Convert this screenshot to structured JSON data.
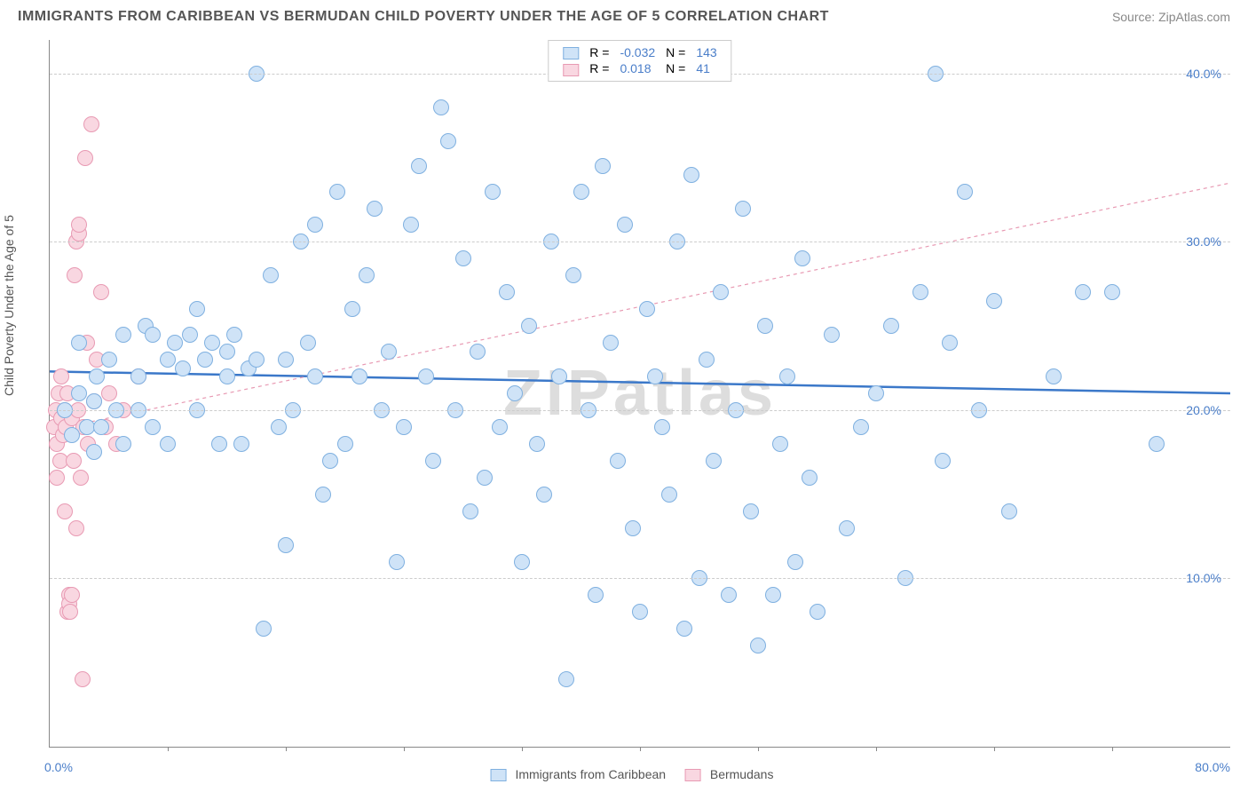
{
  "title": "IMMIGRANTS FROM CARIBBEAN VS BERMUDAN CHILD POVERTY UNDER THE AGE OF 5 CORRELATION CHART",
  "source_label": "Source: ",
  "source_value": "ZipAtlas.com",
  "ylabel": "Child Poverty Under the Age of 5",
  "watermark": "ZIPatlas",
  "chart": {
    "type": "scatter",
    "xlim": [
      0,
      80
    ],
    "ylim": [
      0,
      42
    ],
    "xticks": [
      0,
      80
    ],
    "xtick_labels": [
      "0.0%",
      "80.0%"
    ],
    "xtick_minor": [
      8,
      16,
      24,
      32,
      40,
      48,
      56,
      64,
      72
    ],
    "yticks": [
      10,
      20,
      30,
      40
    ],
    "ytick_labels": [
      "10.0%",
      "20.0%",
      "30.0%",
      "40.0%"
    ],
    "grid_color": "#cccccc",
    "background_color": "#ffffff",
    "series": [
      {
        "name": "Immigrants from Caribbean",
        "fill": "#cfe3f7",
        "stroke": "#7fb0e0",
        "marker_radius": 9,
        "R": "-0.032",
        "N": "143",
        "trend": {
          "x1": 0,
          "y1": 22.3,
          "x2": 80,
          "y2": 21.0,
          "stroke": "#3b78c9",
          "width": 2.5,
          "dash": "none"
        },
        "points": [
          [
            1,
            20
          ],
          [
            1.5,
            18.5
          ],
          [
            2,
            21
          ],
          [
            2,
            24
          ],
          [
            2.5,
            19
          ],
          [
            3,
            20.5
          ],
          [
            3,
            17.5
          ],
          [
            3.2,
            22
          ],
          [
            3.5,
            19
          ],
          [
            4,
            23
          ],
          [
            4.5,
            20
          ],
          [
            5,
            24.5
          ],
          [
            5,
            18
          ],
          [
            6,
            20
          ],
          [
            6,
            22
          ],
          [
            6.5,
            25
          ],
          [
            7,
            19
          ],
          [
            7,
            24.5
          ],
          [
            8,
            23
          ],
          [
            8,
            18
          ],
          [
            8.5,
            24
          ],
          [
            9,
            22.5
          ],
          [
            9.5,
            24.5
          ],
          [
            10,
            20
          ],
          [
            10,
            26
          ],
          [
            10.5,
            23
          ],
          [
            11,
            24
          ],
          [
            11.5,
            18
          ],
          [
            12,
            22
          ],
          [
            12,
            23.5
          ],
          [
            12.5,
            24.5
          ],
          [
            13,
            18
          ],
          [
            13.5,
            22.5
          ],
          [
            14,
            40
          ],
          [
            14,
            23
          ],
          [
            14.5,
            7
          ],
          [
            15,
            28
          ],
          [
            15.5,
            19
          ],
          [
            16,
            12
          ],
          [
            16,
            23
          ],
          [
            16.5,
            20
          ],
          [
            17,
            30
          ],
          [
            17.5,
            24
          ],
          [
            18,
            31
          ],
          [
            18,
            22
          ],
          [
            18.5,
            15
          ],
          [
            19,
            17
          ],
          [
            19.5,
            33
          ],
          [
            20,
            18
          ],
          [
            20.5,
            26
          ],
          [
            21,
            22
          ],
          [
            21.5,
            28
          ],
          [
            22,
            32
          ],
          [
            22.5,
            20
          ],
          [
            23,
            23.5
          ],
          [
            23.5,
            11
          ],
          [
            24,
            19
          ],
          [
            24.5,
            31
          ],
          [
            25,
            34.5
          ],
          [
            25.5,
            22
          ],
          [
            26,
            17
          ],
          [
            26.5,
            38
          ],
          [
            27,
            36
          ],
          [
            27.5,
            20
          ],
          [
            28,
            29
          ],
          [
            28.5,
            14
          ],
          [
            29,
            23.5
          ],
          [
            29.5,
            16
          ],
          [
            30,
            33
          ],
          [
            30.5,
            19
          ],
          [
            31,
            27
          ],
          [
            31.5,
            21
          ],
          [
            32,
            11
          ],
          [
            32.5,
            25
          ],
          [
            33,
            18
          ],
          [
            33.5,
            15
          ],
          [
            34,
            30
          ],
          [
            34.5,
            22
          ],
          [
            35,
            4
          ],
          [
            35.5,
            28
          ],
          [
            36,
            33
          ],
          [
            36.5,
            20
          ],
          [
            37,
            9
          ],
          [
            37.5,
            34.5
          ],
          [
            38,
            24
          ],
          [
            38.5,
            17
          ],
          [
            39,
            31
          ],
          [
            39.5,
            13
          ],
          [
            40,
            8
          ],
          [
            40.5,
            26
          ],
          [
            41,
            22
          ],
          [
            41.5,
            19
          ],
          [
            42,
            15
          ],
          [
            42.5,
            30
          ],
          [
            43,
            7
          ],
          [
            43.5,
            34
          ],
          [
            44,
            10
          ],
          [
            44.5,
            23
          ],
          [
            45,
            17
          ],
          [
            45.5,
            27
          ],
          [
            46,
            9
          ],
          [
            46.5,
            20
          ],
          [
            47,
            32
          ],
          [
            47.5,
            14
          ],
          [
            48,
            6
          ],
          [
            48.5,
            25
          ],
          [
            49,
            9
          ],
          [
            49.5,
            18
          ],
          [
            50,
            22
          ],
          [
            50.5,
            11
          ],
          [
            51,
            29
          ],
          [
            51.5,
            16
          ],
          [
            52,
            8
          ],
          [
            53,
            24.5
          ],
          [
            54,
            13
          ],
          [
            55,
            19
          ],
          [
            56,
            21
          ],
          [
            57,
            25
          ],
          [
            58,
            10
          ],
          [
            59,
            27
          ],
          [
            60,
            40
          ],
          [
            60.5,
            17
          ],
          [
            61,
            24
          ],
          [
            62,
            33
          ],
          [
            63,
            20
          ],
          [
            64,
            26.5
          ],
          [
            65,
            14
          ],
          [
            68,
            22
          ],
          [
            70,
            27
          ],
          [
            72,
            27
          ],
          [
            75,
            18
          ]
        ]
      },
      {
        "name": "Bermudans",
        "fill": "#f9d7e1",
        "stroke": "#e89ab3",
        "marker_radius": 9,
        "R": "0.018",
        "N": "41",
        "trend": {
          "x1": 0,
          "y1": 18.8,
          "x2": 80,
          "y2": 33.5,
          "stroke": "#e89ab3",
          "width": 1.2,
          "dash": "4 4"
        },
        "points": [
          [
            0.3,
            19
          ],
          [
            0.4,
            20
          ],
          [
            0.5,
            18
          ],
          [
            0.5,
            16
          ],
          [
            0.6,
            21
          ],
          [
            0.7,
            17
          ],
          [
            0.8,
            19.5
          ],
          [
            0.8,
            22
          ],
          [
            0.9,
            18.5
          ],
          [
            1,
            20
          ],
          [
            1,
            14
          ],
          [
            1.1,
            19
          ],
          [
            1.2,
            21
          ],
          [
            1.2,
            8
          ],
          [
            1.3,
            9
          ],
          [
            1.3,
            8.5
          ],
          [
            1.4,
            8
          ],
          [
            1.5,
            9
          ],
          [
            1.5,
            19.5
          ],
          [
            1.6,
            17
          ],
          [
            1.7,
            28
          ],
          [
            1.8,
            13
          ],
          [
            1.8,
            30
          ],
          [
            1.9,
            20
          ],
          [
            2,
            30.5
          ],
          [
            2,
            31
          ],
          [
            2.1,
            16
          ],
          [
            2.2,
            4
          ],
          [
            2.3,
            19
          ],
          [
            2.4,
            35
          ],
          [
            2.5,
            24
          ],
          [
            2.6,
            18
          ],
          [
            2.8,
            37
          ],
          [
            3,
            20.5
          ],
          [
            3.2,
            23
          ],
          [
            3.5,
            27
          ],
          [
            3.8,
            19
          ],
          [
            4,
            21
          ],
          [
            4.5,
            18
          ],
          [
            5,
            20
          ],
          [
            6,
            22
          ]
        ]
      }
    ]
  },
  "legend_top": {
    "R_label": "R =",
    "N_label": "N ="
  },
  "legend_bottom": {
    "series1": "Immigrants from Caribbean",
    "series2": "Bermudans"
  }
}
